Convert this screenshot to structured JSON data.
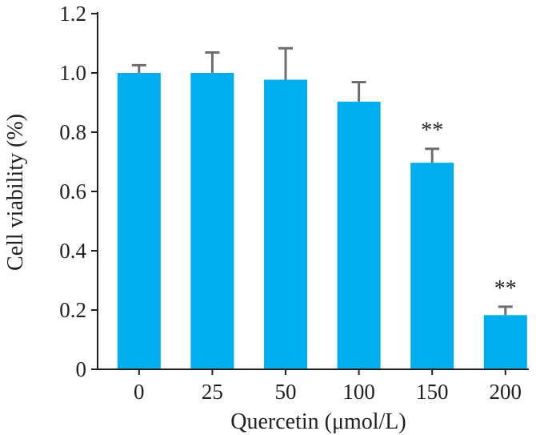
{
  "chart_data": {
    "type": "bar",
    "title": "",
    "xlabel": "Quercetin (μmol/L)",
    "ylabel": "Cell viability (%)",
    "categories": [
      "0",
      "25",
      "50",
      "100",
      "150",
      "200"
    ],
    "values": [
      1.0,
      1.0,
      0.977,
      0.903,
      0.697,
      0.183
    ],
    "error_upper": [
      0.026,
      0.069,
      0.106,
      0.066,
      0.047,
      0.028
    ],
    "ylim": [
      0,
      1.2
    ],
    "yticks": [
      0,
      0.2,
      0.4,
      0.6,
      0.8,
      1.0,
      1.2
    ],
    "ytick_labels": [
      "0",
      "0.2",
      "0.4",
      "0.6",
      "0.8",
      "1.0",
      "1.2"
    ],
    "annotations": [
      {
        "category": "150",
        "text": "**"
      },
      {
        "category": "200",
        "text": "**"
      }
    ],
    "grid": false,
    "bar_color": "#00aeef",
    "error_bar_color": "#6d6e71",
    "axis_color": "#231f20"
  }
}
